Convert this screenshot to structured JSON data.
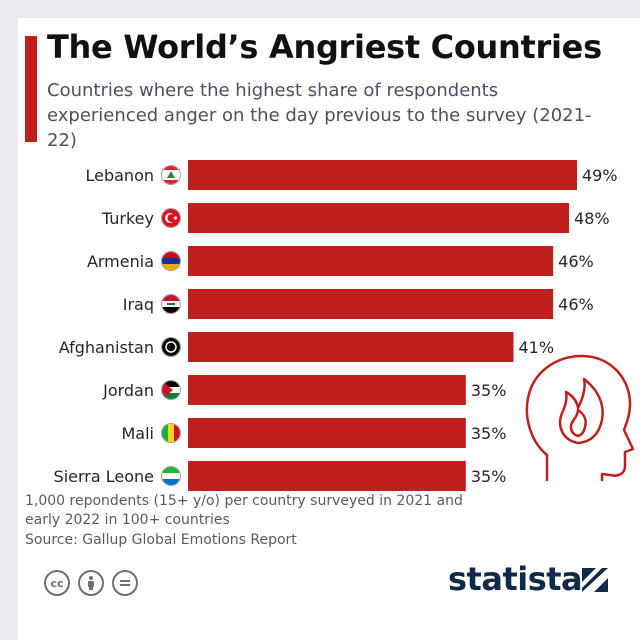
{
  "header": {
    "title": "The World’s Angriest Countries",
    "subtitle": "Countries where the highest share of respondents experienced anger on the day previous to the survey (2021-22)"
  },
  "chart_data": {
    "type": "bar",
    "orientation": "horizontal",
    "title": "The World’s Angriest Countries",
    "subtitle": "Countries where the highest share of respondents experienced anger on the day previous to the survey (2021-22)",
    "categories": [
      "Lebanon",
      "Turkey",
      "Armenia",
      "Iraq",
      "Afghanistan",
      "Jordan",
      "Mali",
      "Sierra Leone"
    ],
    "values": [
      49,
      48,
      46,
      46,
      41,
      35,
      35,
      35
    ],
    "value_labels": [
      "49%",
      "48%",
      "46%",
      "46%",
      "41%",
      "35%",
      "35%",
      "35%"
    ],
    "unit": "%",
    "xlim": [
      0,
      49
    ],
    "bar_color": "#c0201d",
    "grid": false
  },
  "footer": {
    "note": "1,000 repondents (15+ y/o) per country surveyed in 2021 and early 2022 in 100+ countries",
    "source": "Source: Gallup Global Emotions Report",
    "license_icons": [
      "cc-icon",
      "attribution-icon",
      "no-derivatives-icon"
    ],
    "logo": "statista"
  },
  "colors": {
    "accent": "#c0201d",
    "text": "#1e2530",
    "brand": "#0f2a4a",
    "icon_outline": "#c0201d"
  }
}
